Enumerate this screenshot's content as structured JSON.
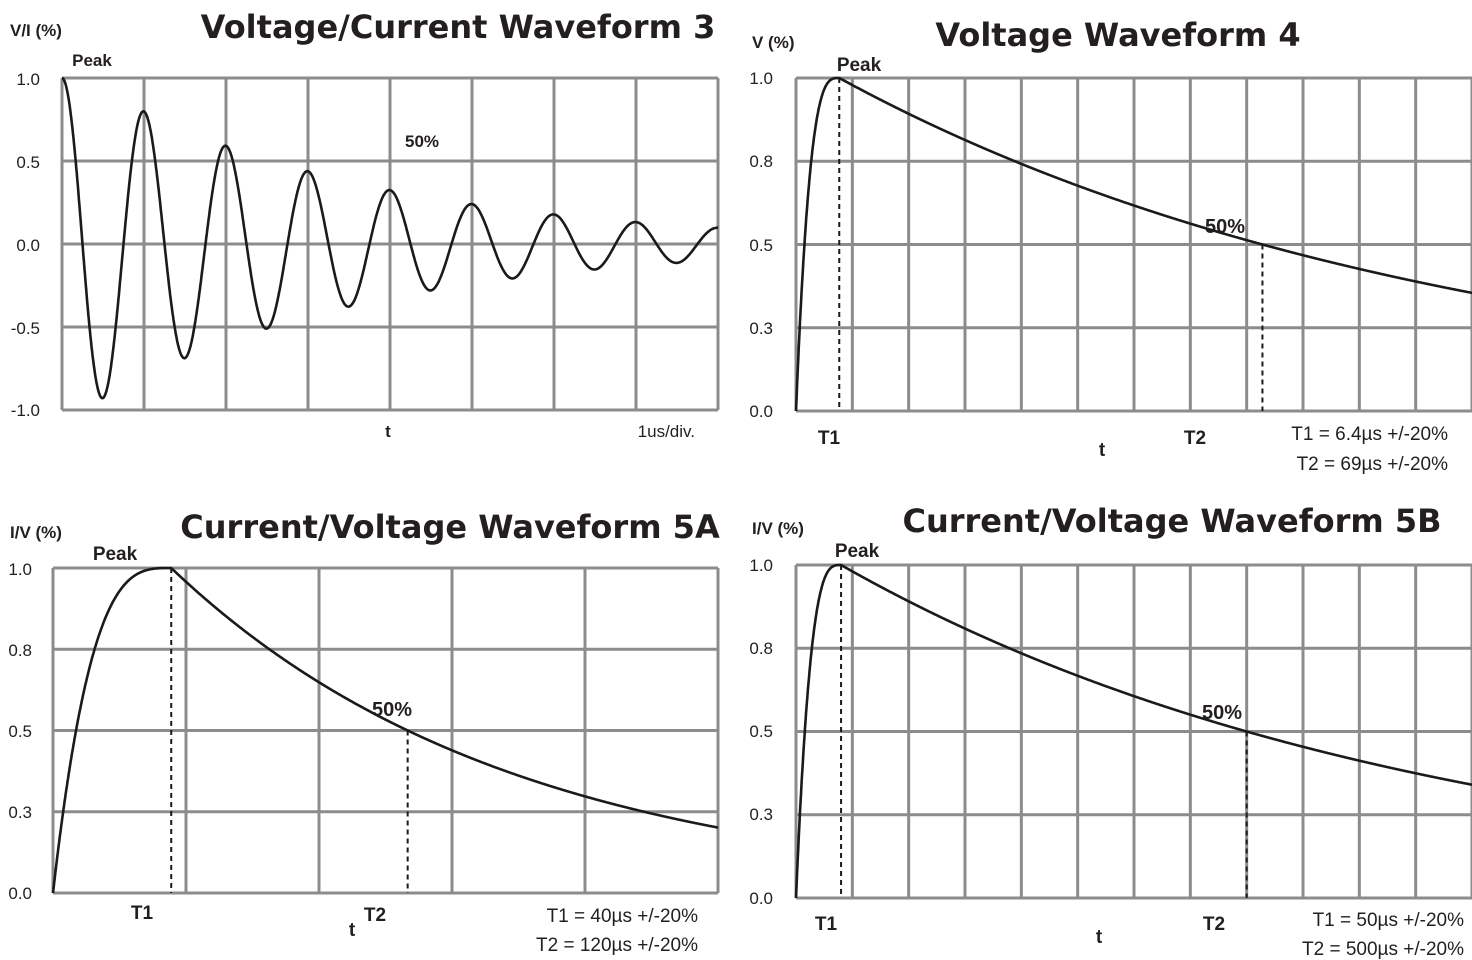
{
  "chart_data": [
    {
      "id": "wf3",
      "type": "line",
      "title": "Voltage/Current Waveform 3",
      "ylabel": "V/I (%)",
      "xlabel": "t",
      "x_unit_note": "1us/div.",
      "ylim": [
        -1.0,
        1.0
      ],
      "xlim": [
        0,
        8
      ],
      "y_ticks": [
        "1.0",
        "0.5",
        "0.0",
        "-0.5",
        "-1.0"
      ],
      "grid": true,
      "waveform": "damped_sine",
      "frequency_cycles_per_div": 1.0,
      "envelope_decay_per_div": 0.3,
      "annotations": [
        {
          "text": "Peak",
          "x": 0.2,
          "y": 1.0
        },
        {
          "text": "50%",
          "x": 4.2,
          "y": 0.5
        }
      ]
    },
    {
      "id": "wf4",
      "type": "line",
      "title": "Voltage Waveform 4",
      "ylabel": "V (%)",
      "xlabel": "t",
      "ylim": [
        0,
        1.0
      ],
      "y_ticks": [
        "1.0",
        "0.8",
        "0.5",
        "0.3",
        "0.0"
      ],
      "grid": true,
      "waveform": "double_exponential",
      "T1_us": 6.4,
      "T2_us": 69,
      "x_max_us": 100,
      "markers": [
        {
          "label": "T1",
          "x": 6.4
        },
        {
          "label": "T2",
          "x": 69
        }
      ],
      "annotations": [
        {
          "text": "Peak"
        },
        {
          "text": "50%"
        }
      ],
      "notes": [
        "T1 = 6.4µs +/-20%",
        "T2 =  69µs +/-20%"
      ]
    },
    {
      "id": "wf5a",
      "type": "line",
      "title": "Current/Voltage Waveform 5A",
      "ylabel": "I/V  (%)",
      "xlabel": "t",
      "ylim": [
        0,
        1.0
      ],
      "y_ticks": [
        "1.0",
        "0.8",
        "0.5",
        "0.3",
        "0.0"
      ],
      "grid": true,
      "waveform": "double_exponential",
      "T1_us": 40,
      "T2_us": 120,
      "x_max_us": 225,
      "markers": [
        {
          "label": "T1",
          "x": 40
        },
        {
          "label": "T2",
          "x": 120
        }
      ],
      "annotations": [
        {
          "text": "Peak"
        },
        {
          "text": "50%"
        }
      ],
      "notes": [
        "T1 =   40µs +/-20%",
        "T2 = 120µs +/-20%"
      ]
    },
    {
      "id": "wf5b",
      "type": "line",
      "title": "Current/Voltage Waveform 5B",
      "ylabel": "I/V  (%)",
      "xlabel": "t",
      "ylim": [
        0,
        1.0
      ],
      "y_ticks": [
        "1.0",
        "0.8",
        "0.5",
        "0.3",
        "0.0"
      ],
      "grid": true,
      "waveform": "double_exponential",
      "T1_us": 50,
      "T2_us": 500,
      "x_max_us": 750,
      "markers": [
        {
          "label": "T1",
          "x": 50
        },
        {
          "label": "T2",
          "x": 500
        }
      ],
      "annotations": [
        {
          "text": "Peak"
        },
        {
          "text": "50%"
        }
      ],
      "notes": [
        "T1 =     50µs +/-20%",
        "T2 =  500µs +/-20%"
      ]
    }
  ]
}
